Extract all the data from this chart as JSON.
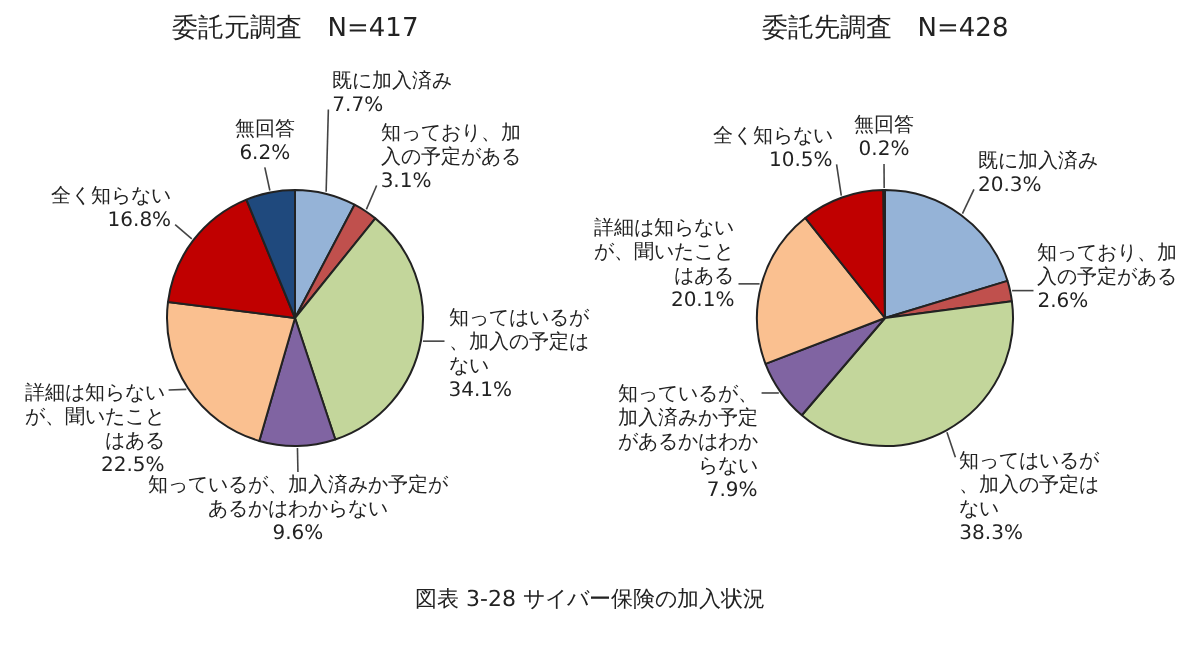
{
  "chart_data": [
    {
      "type": "pie",
      "title": "委託元調査　N=417",
      "categories": [
        "既に加入済み",
        "知っており、加入の予定がある",
        "知ってはいるが、加入の予定はない",
        "知っているが、加入済みか予定があるかはわからない",
        "詳細は知らないが、聞いたことはある",
        "全く知らない",
        "無回答"
      ],
      "values": [
        7.7,
        3.1,
        34.1,
        9.6,
        22.5,
        16.8,
        6.2
      ],
      "value_labels": [
        "7.7%",
        "3.1%",
        "34.1%",
        "9.6%",
        "22.5%",
        "16.8%",
        "6.2%"
      ],
      "colors": [
        "#95b3d7",
        "#c0504d",
        "#c3d69b",
        "#8064a2",
        "#fac090",
        "#c00000",
        "#1f497d"
      ],
      "annotations": [
        "図表 3-28 サイバー保険の加入状況"
      ]
    },
    {
      "type": "pie",
      "title": "委託先調査　N=428",
      "categories": [
        "既に加入済み",
        "知っており、加入の予定がある",
        "知ってはいるが、加入の予定はない",
        "知っているが、加入済みか予定があるかはわからない",
        "詳細は知らないが、聞いたことはある",
        "全く知らない",
        "無回答"
      ],
      "values": [
        20.3,
        2.6,
        38.3,
        7.9,
        20.1,
        10.5,
        0.2
      ],
      "value_labels": [
        "20.3%",
        "2.6%",
        "38.3%",
        "7.9%",
        "20.1%",
        "10.5%",
        "0.2%"
      ],
      "colors": [
        "#95b3d7",
        "#c0504d",
        "#c3d69b",
        "#8064a2",
        "#fac090",
        "#c00000",
        "#1f497d"
      ]
    }
  ]
}
